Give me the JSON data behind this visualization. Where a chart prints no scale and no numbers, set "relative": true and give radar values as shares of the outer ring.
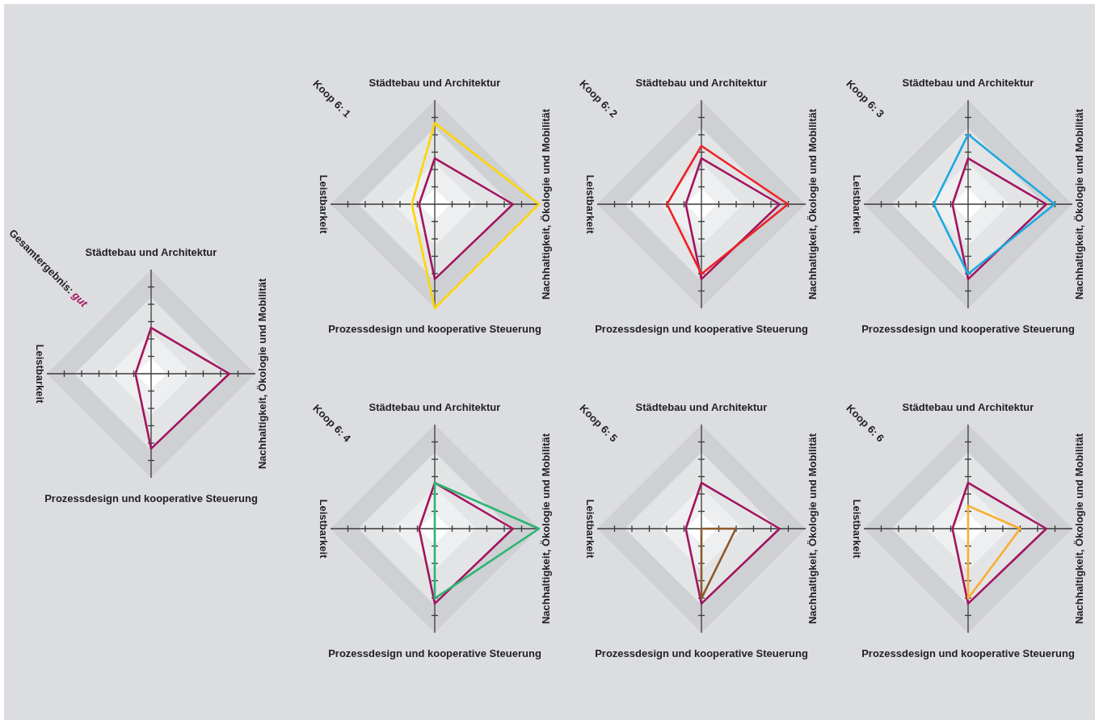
{
  "chart_data": [
    {
      "type": "radar",
      "relative": true,
      "title": "Gesamtergebnis:",
      "subtitle": "gut",
      "categories": [
        "Städtebau und Architektur",
        "Nachhaltigkeit, Ökologie und Mobilität",
        "Prozessdesign und kooperative Steuerung",
        "Leistbarkeit"
      ],
      "series": [
        {
          "color": "#a3155f",
          "values": [
            0.44,
            0.75,
            0.72,
            0.15
          ]
        }
      ]
    },
    {
      "type": "radar",
      "relative": true,
      "title": "Koop 6: 1",
      "categories": [
        "Städtebau und Architektur",
        "Nachhaltigkeit, Ökologie und Mobilität",
        "Prozessdesign und kooperative Steuerung",
        "Leistbarkeit"
      ],
      "series": [
        {
          "color": "#a3155f",
          "values": [
            0.44,
            0.75,
            0.72,
            0.15
          ]
        },
        {
          "color": "#ffd500",
          "values": [
            0.78,
            1.0,
            1.0,
            0.22
          ]
        }
      ]
    },
    {
      "type": "radar",
      "relative": true,
      "title": "Koop 6: 2",
      "categories": [
        "Städtebau und Architektur",
        "Nachhaltigkeit, Ökologie und Mobilität",
        "Prozessdesign und kooperative Steuerung",
        "Leistbarkeit"
      ],
      "series": [
        {
          "color": "#a3155f",
          "values": [
            0.44,
            0.75,
            0.72,
            0.15
          ]
        },
        {
          "color": "#ef2227",
          "values": [
            0.56,
            0.83,
            0.67,
            0.33
          ]
        }
      ]
    },
    {
      "type": "radar",
      "relative": true,
      "title": "Koop 6: 3",
      "categories": [
        "Städtebau und Architektur",
        "Nachhaltigkeit, Ökologie und Mobilität",
        "Prozessdesign und kooperative Steuerung",
        "Leistbarkeit"
      ],
      "series": [
        {
          "color": "#a3155f",
          "values": [
            0.44,
            0.75,
            0.72,
            0.15
          ]
        },
        {
          "color": "#1ba9e1",
          "values": [
            0.67,
            0.83,
            0.67,
            0.33
          ]
        }
      ]
    },
    {
      "type": "radar",
      "relative": true,
      "title": "Koop 6: 4",
      "categories": [
        "Städtebau und Architektur",
        "Nachhaltigkeit, Ökologie und Mobilität",
        "Prozessdesign und kooperative Steuerung",
        "Leistbarkeit"
      ],
      "series": [
        {
          "color": "#a3155f",
          "values": [
            0.44,
            0.75,
            0.72,
            0.15
          ]
        },
        {
          "color": "#2bb673",
          "values": [
            0.44,
            1.0,
            0.67,
            0
          ]
        }
      ]
    },
    {
      "type": "radar",
      "relative": true,
      "title": "Koop 6: 5",
      "categories": [
        "Städtebau und Architektur",
        "Nachhaltigkeit, Ökologie und Mobilität",
        "Prozessdesign und kooperative Steuerung",
        "Leistbarkeit"
      ],
      "series": [
        {
          "color": "#a3155f",
          "values": [
            0.44,
            0.75,
            0.72,
            0.15
          ]
        },
        {
          "color": "#8b5a2b",
          "values": [
            0,
            0.33,
            0.67,
            0
          ]
        }
      ]
    },
    {
      "type": "radar",
      "relative": true,
      "title": "Koop 6: 6",
      "categories": [
        "Städtebau und Architektur",
        "Nachhaltigkeit, Ökologie und Mobilität",
        "Prozessdesign und kooperative Steuerung",
        "Leistbarkeit"
      ],
      "series": [
        {
          "color": "#a3155f",
          "values": [
            0.44,
            0.75,
            0.72,
            0.15
          ]
        },
        {
          "color": "#f9ad2f",
          "values": [
            0.22,
            0.5,
            0.67,
            0
          ]
        }
      ]
    }
  ]
}
